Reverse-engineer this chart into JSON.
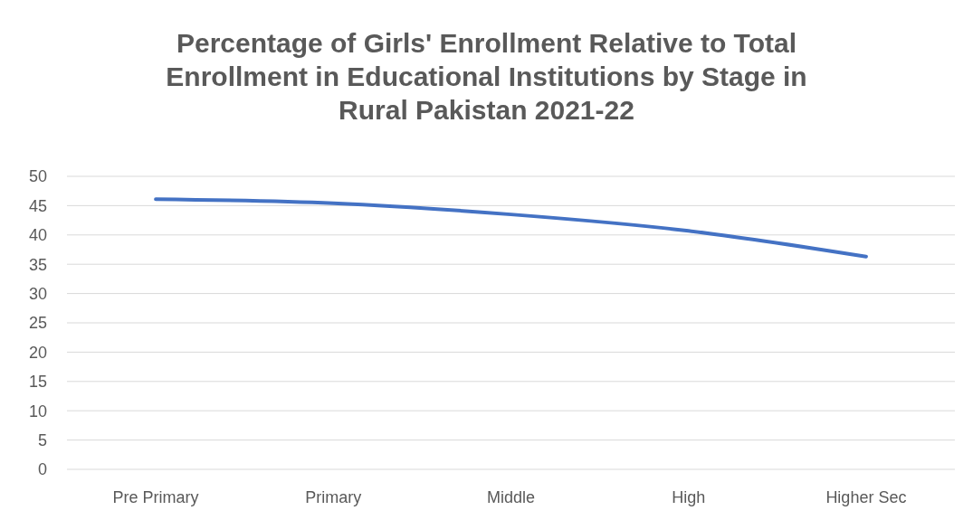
{
  "chart_data": {
    "type": "line",
    "title": "Percentage of Girls' Enrollment Relative to Total Enrollment in Educational Institutions by Stage in Rural Pakistan 2021-22",
    "categories": [
      "Pre Primary",
      "Primary",
      "Middle",
      "High",
      "Higher Sec"
    ],
    "series": [
      {
        "color": "#4472c4",
        "values": [
          46.1,
          45.4,
          43.5,
          40.7,
          36.3
        ]
      }
    ],
    "ylim": [
      0,
      50
    ],
    "yticks": [
      0,
      5,
      10,
      15,
      20,
      25,
      30,
      35,
      40,
      45,
      50
    ],
    "grid": "y",
    "marker": "none",
    "line_style": "solid"
  }
}
